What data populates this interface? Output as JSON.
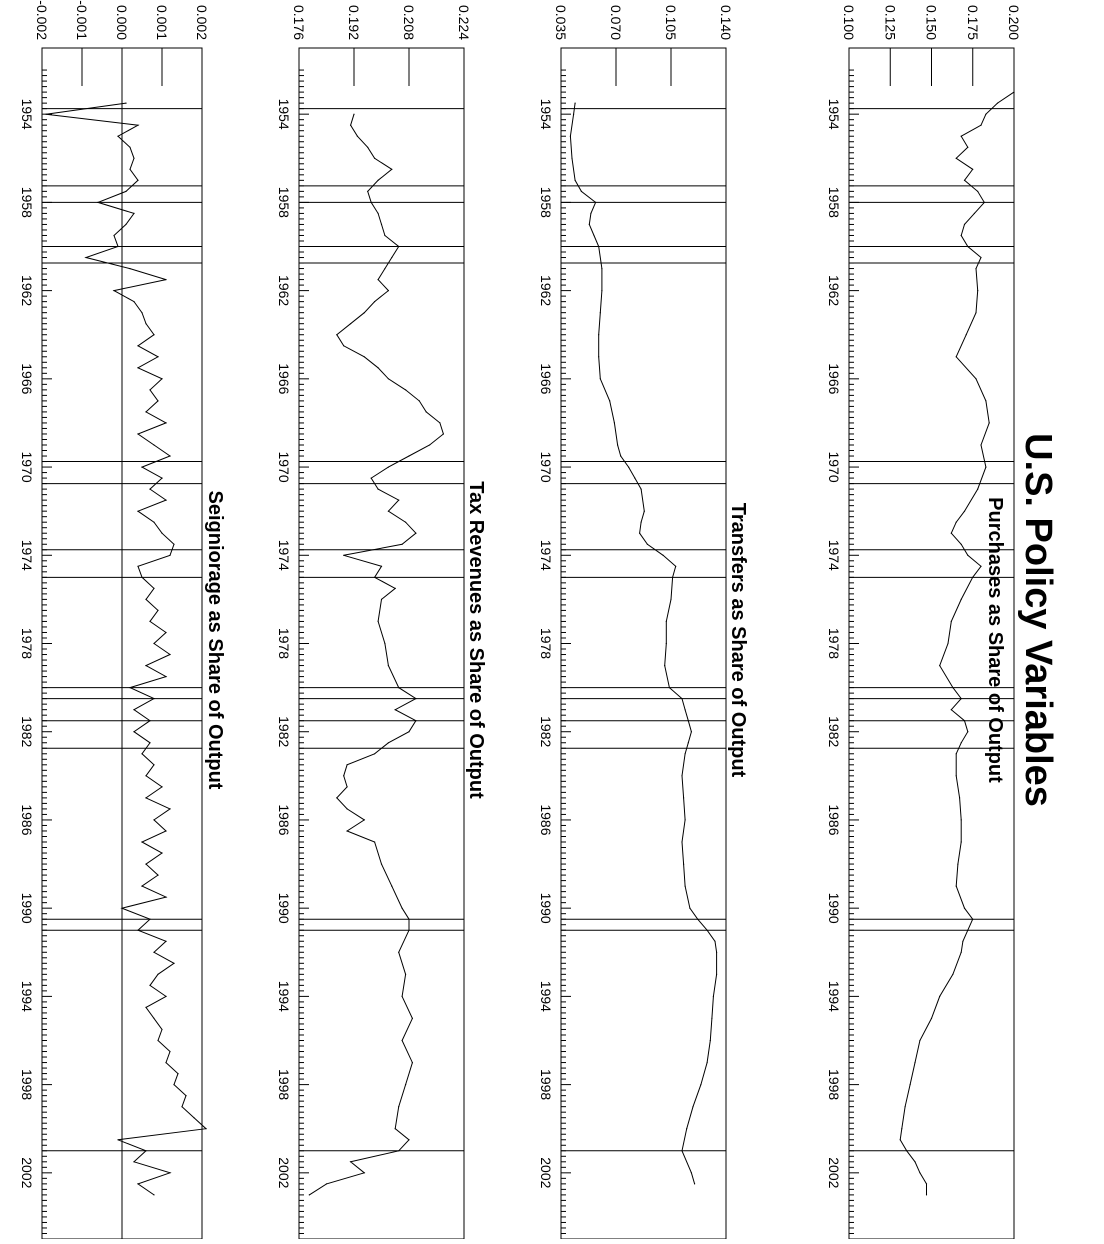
{
  "title": "U.S. Policy Variables",
  "chart_data": [
    {
      "type": "line",
      "title": "Purchases as Share of Output",
      "xlabel": "",
      "ylabel": "",
      "xlim": [
        1951.0,
        2005.0
      ],
      "ylim": [
        0.1,
        0.2
      ],
      "yticks": [
        "0.100",
        "0.125",
        "0.150",
        "0.175",
        "0.200"
      ],
      "xticks": [
        "1954",
        "1958",
        "1962",
        "1966",
        "1970",
        "1974",
        "1978",
        "1982",
        "1986",
        "1990",
        "1994",
        "1998",
        "2002"
      ],
      "recession_lines": [
        1953.75,
        1957.25,
        1958.0,
        1960.0,
        1960.75,
        1969.75,
        1970.75,
        1973.75,
        1975.0,
        1980.0,
        1980.5,
        1981.5,
        1982.75,
        1990.5,
        1991.0,
        2001.0
      ],
      "series": [
        {
          "x": [
            1953.0,
            1953.5,
            1954.0,
            1954.5,
            1955.0,
            1955.5,
            1956.0,
            1956.5,
            1957.0,
            1957.5,
            1958.0,
            1958.5,
            1959.0,
            1959.5,
            1960.0,
            1960.5,
            1961.0,
            1962.0,
            1963.0,
            1964.0,
            1965.0,
            1966.0,
            1967.0,
            1968.0,
            1969.0,
            1970.0,
            1971.0,
            1972.0,
            1972.5,
            1973.0,
            1973.5,
            1974.0,
            1974.5,
            1975.0,
            1976.0,
            1977.0,
            1978.0,
            1979.0,
            1980.0,
            1980.5,
            1981.0,
            1981.5,
            1982.0,
            1982.5,
            1983.0,
            1984.0,
            1985.0,
            1986.0,
            1987.0,
            1988.0,
            1989.0,
            1990.0,
            1990.5,
            1991.0,
            1991.5,
            1992.0,
            1993.0,
            1994.0,
            1995.0,
            1996.0,
            1997.0,
            1998.0,
            1999.0,
            2000.0,
            2000.5,
            2001.0,
            2001.5,
            2002.0,
            2002.5,
            2003.0
          ],
          "values": [
            0.2,
            0.19,
            0.183,
            0.18,
            0.168,
            0.172,
            0.165,
            0.175,
            0.17,
            0.178,
            0.182,
            0.176,
            0.17,
            0.168,
            0.172,
            0.18,
            0.177,
            0.178,
            0.177,
            0.171,
            0.165,
            0.177,
            0.183,
            0.185,
            0.18,
            0.183,
            0.178,
            0.17,
            0.165,
            0.162,
            0.168,
            0.172,
            0.18,
            0.175,
            0.168,
            0.162,
            0.16,
            0.155,
            0.163,
            0.168,
            0.162,
            0.17,
            0.172,
            0.168,
            0.165,
            0.165,
            0.167,
            0.168,
            0.168,
            0.166,
            0.165,
            0.17,
            0.175,
            0.172,
            0.169,
            0.168,
            0.163,
            0.155,
            0.15,
            0.143,
            0.14,
            0.137,
            0.134,
            0.132,
            0.131,
            0.135,
            0.14,
            0.143,
            0.147,
            0.147
          ]
        }
      ]
    },
    {
      "type": "line",
      "title": "Transfers as Share of Output",
      "xlabel": "",
      "ylabel": "",
      "xlim": [
        1951.0,
        2005.0
      ],
      "ylim": [
        0.035,
        0.14
      ],
      "yticks": [
        "0.035",
        "0.070",
        "0.105",
        "0.140"
      ],
      "xticks": [
        "1954",
        "1958",
        "1962",
        "1966",
        "1970",
        "1974",
        "1978",
        "1982",
        "1986",
        "1990",
        "1994",
        "1998",
        "2002"
      ],
      "recession_lines": [
        1953.75,
        1957.25,
        1958.0,
        1960.0,
        1960.75,
        1969.75,
        1970.75,
        1973.75,
        1975.0,
        1980.0,
        1980.5,
        1981.5,
        1982.75,
        1990.5,
        1991.0,
        2001.0
      ],
      "series": [
        {
          "x": [
            1953.5,
            1954.0,
            1955.0,
            1956.0,
            1957.0,
            1957.5,
            1958.0,
            1958.5,
            1959.0,
            1959.5,
            1960.0,
            1961.0,
            1962.0,
            1963.0,
            1964.0,
            1965.0,
            1966.0,
            1967.0,
            1968.0,
            1969.0,
            1969.5,
            1970.0,
            1970.5,
            1971.0,
            1972.0,
            1972.5,
            1973.0,
            1973.5,
            1974.0,
            1974.5,
            1975.0,
            1976.0,
            1977.0,
            1978.0,
            1979.0,
            1980.0,
            1980.5,
            1981.0,
            1981.5,
            1982.0,
            1982.5,
            1983.0,
            1984.0,
            1985.0,
            1986.0,
            1987.0,
            1988.0,
            1989.0,
            1990.0,
            1990.5,
            1991.0,
            1991.5,
            1992.0,
            1993.0,
            1994.0,
            1995.0,
            1996.0,
            1997.0,
            1998.0,
            1999.0,
            2000.0,
            2001.0,
            2002.0,
            2002.5
          ],
          "values": [
            0.044,
            0.043,
            0.041,
            0.042,
            0.044,
            0.048,
            0.057,
            0.054,
            0.053,
            0.056,
            0.059,
            0.061,
            0.061,
            0.06,
            0.059,
            0.059,
            0.06,
            0.066,
            0.069,
            0.071,
            0.073,
            0.078,
            0.082,
            0.086,
            0.088,
            0.086,
            0.085,
            0.09,
            0.1,
            0.108,
            0.106,
            0.105,
            0.102,
            0.102,
            0.101,
            0.104,
            0.112,
            0.114,
            0.116,
            0.118,
            0.116,
            0.114,
            0.112,
            0.113,
            0.114,
            0.112,
            0.113,
            0.114,
            0.117,
            0.122,
            0.128,
            0.133,
            0.134,
            0.134,
            0.132,
            0.131,
            0.13,
            0.128,
            0.124,
            0.119,
            0.115,
            0.112,
            0.118,
            0.12
          ]
        }
      ]
    },
    {
      "type": "line",
      "title": "Tax Revenues as Share of Output",
      "xlabel": "",
      "ylabel": "",
      "xlim": [
        1951.0,
        2005.0
      ],
      "ylim": [
        0.176,
        0.224
      ],
      "yticks": [
        "0.176",
        "0.192",
        "0.208",
        "0.224"
      ],
      "xticks": [
        "1954",
        "1958",
        "1962",
        "1966",
        "1970",
        "1974",
        "1978",
        "1982",
        "1986",
        "1990",
        "1994",
        "1998",
        "2002"
      ],
      "recession_lines": [
        1953.75,
        1957.25,
        1958.0,
        1960.0,
        1960.75,
        1969.75,
        1970.75,
        1973.75,
        1975.0,
        1980.0,
        1980.5,
        1981.5,
        1982.75,
        1990.5,
        1991.0,
        2001.0
      ],
      "series": [
        {
          "x": [
            1954.0,
            1954.5,
            1955.0,
            1955.5,
            1956.0,
            1956.5,
            1957.0,
            1957.5,
            1958.0,
            1958.5,
            1959.0,
            1959.5,
            1960.0,
            1960.5,
            1961.0,
            1961.5,
            1962.0,
            1962.5,
            1963.0,
            1963.5,
            1964.0,
            1964.5,
            1965.0,
            1965.5,
            1966.0,
            1966.5,
            1967.0,
            1967.5,
            1968.0,
            1968.5,
            1969.0,
            1969.5,
            1970.0,
            1970.5,
            1971.0,
            1971.5,
            1972.0,
            1972.5,
            1973.0,
            1973.5,
            1974.0,
            1974.5,
            1975.0,
            1975.5,
            1976.0,
            1977.0,
            1978.0,
            1979.0,
            1980.0,
            1980.5,
            1981.0,
            1981.5,
            1982.0,
            1982.5,
            1983.0,
            1983.5,
            1984.0,
            1984.5,
            1985.0,
            1985.5,
            1986.0,
            1986.5,
            1987.0,
            1988.0,
            1989.0,
            1990.0,
            1990.5,
            1991.0,
            1992.0,
            1993.0,
            1994.0,
            1995.0,
            1996.0,
            1997.0,
            1998.0,
            1999.0,
            2000.0,
            2000.5,
            2001.0,
            2001.5,
            2002.0,
            2002.5,
            2003.0
          ],
          "values": [
            0.192,
            0.191,
            0.193,
            0.196,
            0.198,
            0.203,
            0.199,
            0.196,
            0.197,
            0.199,
            0.2,
            0.201,
            0.205,
            0.203,
            0.201,
            0.199,
            0.202,
            0.198,
            0.195,
            0.191,
            0.187,
            0.189,
            0.195,
            0.199,
            0.202,
            0.207,
            0.211,
            0.213,
            0.217,
            0.218,
            0.214,
            0.208,
            0.202,
            0.197,
            0.199,
            0.205,
            0.202,
            0.207,
            0.21,
            0.206,
            0.189,
            0.2,
            0.198,
            0.204,
            0.2,
            0.199,
            0.201,
            0.202,
            0.205,
            0.21,
            0.204,
            0.21,
            0.208,
            0.202,
            0.198,
            0.19,
            0.189,
            0.19,
            0.187,
            0.19,
            0.195,
            0.19,
            0.198,
            0.2,
            0.203,
            0.206,
            0.208,
            0.208,
            0.205,
            0.207,
            0.206,
            0.209,
            0.206,
            0.209,
            0.207,
            0.205,
            0.204,
            0.208,
            0.205,
            0.191,
            0.195,
            0.184,
            0.179
          ]
        }
      ]
    },
    {
      "type": "line",
      "title": "Seigniorage as Share of Output",
      "xlabel": "",
      "ylabel": "",
      "xlim": [
        1951.0,
        2005.0
      ],
      "ylim": [
        -0.002,
        0.002
      ],
      "yticks": [
        "-0.002",
        "-0.001",
        "0.000",
        "0.001",
        "0.002"
      ],
      "xticks": [
        "1954",
        "1958",
        "1962",
        "1966",
        "1970",
        "1974",
        "1978",
        "1982",
        "1986",
        "1990",
        "1994",
        "1998",
        "2002"
      ],
      "recession_lines": [
        1953.75,
        1957.25,
        1958.0,
        1960.0,
        1960.75,
        1969.75,
        1970.75,
        1973.75,
        1975.0,
        1980.0,
        1980.5,
        1981.5,
        1982.75,
        1990.5,
        1991.0,
        2001.0
      ],
      "series": [
        {
          "x": [
            1953.5,
            1954.0,
            1954.5,
            1955.0,
            1955.5,
            1956.0,
            1956.5,
            1957.0,
            1957.5,
            1958.0,
            1958.5,
            1959.0,
            1959.5,
            1960.0,
            1960.5,
            1961.0,
            1961.5,
            1962.0,
            1962.5,
            1963.0,
            1963.5,
            1964.0,
            1964.5,
            1965.0,
            1965.5,
            1966.0,
            1966.5,
            1967.0,
            1967.5,
            1968.0,
            1968.5,
            1969.0,
            1969.5,
            1970.0,
            1970.5,
            1971.0,
            1971.5,
            1972.0,
            1972.5,
            1973.0,
            1973.5,
            1974.0,
            1974.5,
            1975.0,
            1975.5,
            1976.0,
            1976.5,
            1977.0,
            1977.5,
            1978.0,
            1978.5,
            1979.0,
            1979.5,
            1980.0,
            1980.5,
            1981.0,
            1981.5,
            1982.0,
            1982.5,
            1983.0,
            1983.5,
            1984.0,
            1984.5,
            1985.0,
            1985.5,
            1986.0,
            1986.5,
            1987.0,
            1987.5,
            1988.0,
            1988.5,
            1989.0,
            1989.5,
            1990.0,
            1990.5,
            1991.0,
            1991.5,
            1992.0,
            1992.5,
            1993.0,
            1993.5,
            1994.0,
            1994.5,
            1995.0,
            1995.5,
            1996.0,
            1996.5,
            1997.0,
            1997.5,
            1998.0,
            1998.5,
            1999.0,
            1999.5,
            2000.0,
            2000.5,
            2001.0,
            2001.5,
            2002.0,
            2002.5,
            2003.0
          ],
          "values": [
            0.0001,
            -0.0019,
            0.0004,
            -0.0001,
            0.0002,
            0.0003,
            0.0002,
            0.0004,
            0.0001,
            -0.0006,
            0.0003,
            0.0001,
            -0.0002,
            -0.0001,
            -0.0009,
            0.0002,
            0.0011,
            -0.0002,
            0.0003,
            0.0005,
            0.0006,
            0.0008,
            0.0004,
            0.0009,
            0.0004,
            0.001,
            0.0007,
            0.0009,
            0.0006,
            0.0011,
            0.0004,
            0.0008,
            0.0012,
            0.0005,
            0.001,
            0.0007,
            0.0011,
            0.0004,
            0.0008,
            0.001,
            0.0013,
            0.0012,
            0.0004,
            0.0005,
            0.0008,
            0.0006,
            0.0009,
            0.0007,
            0.0011,
            0.0008,
            0.0012,
            0.0006,
            0.0011,
            0.0002,
            0.0008,
            0.0003,
            0.0007,
            0.0003,
            0.0007,
            0.0005,
            0.0008,
            0.0006,
            0.001,
            0.0006,
            0.0012,
            0.0008,
            0.0011,
            0.0005,
            0.001,
            0.0006,
            0.0009,
            0.0005,
            0.0011,
            0.0,
            0.0007,
            0.0004,
            0.0011,
            0.0008,
            0.0013,
            0.0009,
            0.0007,
            0.0011,
            0.0006,
            0.0008,
            0.001,
            0.0009,
            0.0012,
            0.0011,
            0.0014,
            0.0013,
            0.0016,
            0.0015,
            0.0018,
            0.0021,
            -0.0001,
            0.0006,
            0.0003,
            0.0012,
            0.0004,
            0.0008
          ]
        }
      ]
    }
  ]
}
